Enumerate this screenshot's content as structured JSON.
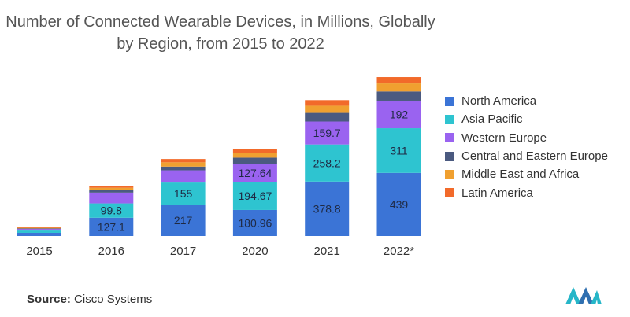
{
  "chart_data": {
    "type": "bar",
    "stacked": true,
    "title_lines": [
      "Number of Connected Wearable Devices, in Millions, Globally",
      "by Region, from 2015 to 2022"
    ],
    "categories": [
      "2015",
      "2016",
      "2017",
      "2020",
      "2021",
      "2022*"
    ],
    "series": [
      {
        "name": "North America",
        "color": "#3b74d6",
        "values": [
          22,
          127.1,
          217,
          180.96,
          378.8,
          439
        ],
        "labels": [
          "",
          "127.1",
          "217",
          "180.96",
          "378.8",
          "439"
        ]
      },
      {
        "name": "Asia Pacific",
        "color": "#2ec4d0",
        "values": [
          16,
          99.8,
          155,
          194.67,
          258.2,
          311
        ],
        "labels": [
          "",
          "99.8",
          "155",
          "194.67",
          "258.2",
          "311"
        ]
      },
      {
        "name": "Western Europe",
        "color": "#9a63f0",
        "values": [
          11,
          75,
          85,
          127.64,
          159.7,
          192
        ],
        "labels": [
          "",
          "",
          "",
          "127.64",
          "159.7",
          "192"
        ]
      },
      {
        "name": "Central and Eastern Europe",
        "color": "#4b5a80",
        "values": [
          4,
          17,
          26,
          42,
          60,
          64
        ],
        "labels": [
          "",
          "",
          "",
          "",
          "",
          ""
        ]
      },
      {
        "name": "Middle East and Africa",
        "color": "#f0a030",
        "values": [
          4,
          17,
          30,
          35,
          50,
          56
        ],
        "labels": [
          "",
          "",
          "",
          "",
          "",
          ""
        ]
      },
      {
        "name": "Latin America",
        "color": "#f26a2a",
        "values": [
          4,
          14,
          23,
          25,
          39,
          44
        ],
        "labels": [
          "",
          "",
          "",
          "",
          "",
          ""
        ]
      }
    ],
    "ylim": [
      0,
      1150
    ],
    "xlabel": "",
    "ylabel": "",
    "legend_position": "right"
  },
  "source": {
    "label": "Source:",
    "text": "Cisco Systems"
  }
}
